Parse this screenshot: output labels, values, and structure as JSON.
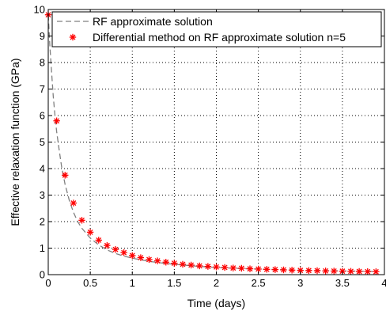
{
  "chart_data": {
    "type": "line",
    "title": "",
    "xlabel": "Time (days)",
    "ylabel": "Effective relaxation function (GPa)",
    "xlim": [
      0,
      4
    ],
    "ylim": [
      0,
      10
    ],
    "xticks": [
      0,
      0.5,
      1,
      1.5,
      2,
      2.5,
      3,
      3.5,
      4
    ],
    "yticks": [
      0,
      1,
      2,
      3,
      4,
      5,
      6,
      7,
      8,
      9,
      10
    ],
    "xtick_labels": [
      "0",
      "0.5",
      "1",
      "1.5",
      "2",
      "2.5",
      "3",
      "3.5",
      "4"
    ],
    "ytick_labels": [
      "0",
      "1",
      "2",
      "3",
      "4",
      "5",
      "6",
      "7",
      "8",
      "9",
      "10"
    ],
    "grid": true,
    "legend_position": "top-right",
    "series": [
      {
        "name": "RF approximate solution",
        "style": "dashed-line",
        "color": "#808080",
        "x": [
          0,
          0.02,
          0.04,
          0.06,
          0.08,
          0.1,
          0.13,
          0.16,
          0.2,
          0.25,
          0.3,
          0.35,
          0.4,
          0.5,
          0.6,
          0.7,
          0.8,
          0.9,
          1.0,
          1.2,
          1.4,
          1.6,
          1.8,
          2.0,
          2.3,
          2.6,
          3.0,
          3.5,
          3.9
        ],
        "y": [
          9.8,
          8.6,
          7.6,
          6.7,
          6.0,
          5.4,
          4.7,
          4.05,
          3.4,
          2.8,
          2.35,
          2.0,
          1.75,
          1.38,
          1.12,
          0.93,
          0.8,
          0.7,
          0.62,
          0.5,
          0.42,
          0.36,
          0.31,
          0.27,
          0.23,
          0.2,
          0.17,
          0.14,
          0.12
        ]
      },
      {
        "name": "Differential method on RF approximate solution n=5",
        "style": "star-markers",
        "color": "#ff0000",
        "x": [
          0,
          0.1,
          0.2,
          0.3,
          0.4,
          0.5,
          0.6,
          0.7,
          0.8,
          0.9,
          1.0,
          1.1,
          1.2,
          1.3,
          1.4,
          1.5,
          1.6,
          1.7,
          1.8,
          1.9,
          2.0,
          2.1,
          2.2,
          2.3,
          2.4,
          2.5,
          2.6,
          2.7,
          2.8,
          2.9,
          3.0,
          3.1,
          3.2,
          3.3,
          3.4,
          3.5,
          3.6,
          3.7,
          3.8,
          3.9
        ],
        "y": [
          9.8,
          5.8,
          3.75,
          2.7,
          2.05,
          1.6,
          1.3,
          1.1,
          0.95,
          0.83,
          0.72,
          0.64,
          0.57,
          0.52,
          0.47,
          0.43,
          0.39,
          0.36,
          0.33,
          0.31,
          0.29,
          0.27,
          0.25,
          0.24,
          0.22,
          0.21,
          0.2,
          0.19,
          0.18,
          0.17,
          0.16,
          0.155,
          0.15,
          0.14,
          0.135,
          0.13,
          0.125,
          0.12,
          0.115,
          0.11
        ]
      }
    ]
  }
}
